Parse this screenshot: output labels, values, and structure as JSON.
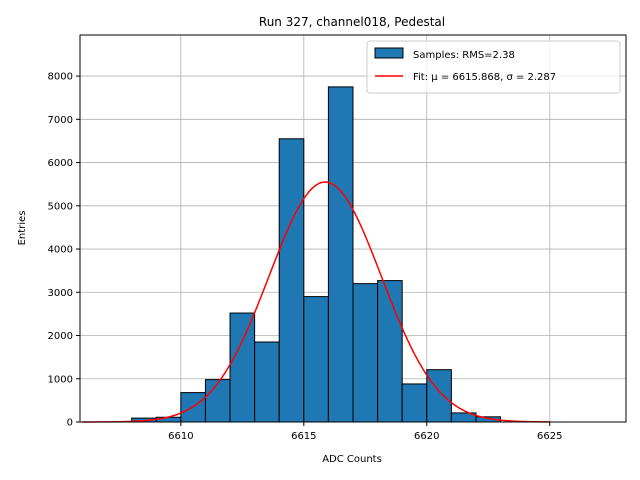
{
  "chart_data": {
    "type": "bar",
    "title": "Run 327, channel018, Pedestal",
    "xlabel": "ADC Counts",
    "ylabel": "Entries",
    "xlim": [
      6605.9,
      6628.1
    ],
    "ylim": [
      0,
      8950
    ],
    "xticks": [
      6610,
      6615,
      6620,
      6625
    ],
    "yticks": [
      0,
      1000,
      2000,
      3000,
      4000,
      5000,
      6000,
      7000,
      8000
    ],
    "grid": true,
    "legend_position": "top-right",
    "histogram": {
      "name": "Samples: RMS=2.38",
      "bin_width": 1,
      "bin_starts": [
        6608,
        6609,
        6610,
        6611,
        6612,
        6613,
        6614,
        6615,
        6616,
        6617,
        6618,
        6619,
        6620,
        6621,
        6622
      ],
      "values": [
        90,
        110,
        680,
        980,
        2520,
        1850,
        6550,
        2900,
        7750,
        3200,
        3270,
        880,
        1210,
        210,
        120
      ],
      "color": "#1f77b4",
      "edge_color": "#000000"
    },
    "fit": {
      "name": "Fit: μ = 6615.868, σ = 2.287",
      "mu": 6615.868,
      "sigma": 2.287,
      "amplitude": 5550,
      "x_range": [
        6606,
        6625
      ],
      "color": "#ff0000"
    }
  }
}
